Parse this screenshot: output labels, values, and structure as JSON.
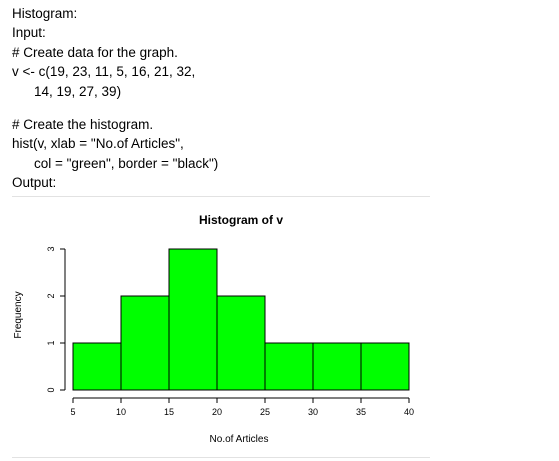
{
  "document": {
    "lines": [
      "Histogram:",
      "Input:",
      "# Create data for the graph.",
      "v <- c(19, 23, 11, 5, 16, 21, 32,",
      "14, 19, 27, 39)",
      "",
      "# Create the histogram.",
      "hist(v, xlab = \"No.of Articles\",",
      "col = \"green\", border = \"black\")",
      "Output:"
    ]
  },
  "chart_data": {
    "type": "bar",
    "title": "Histogram of v",
    "xlabel": "No.of Articles",
    "ylabel": "Frequency",
    "bins": [
      [
        5,
        10
      ],
      [
        10,
        15
      ],
      [
        15,
        20
      ],
      [
        20,
        25
      ],
      [
        25,
        30
      ],
      [
        30,
        35
      ],
      [
        35,
        40
      ]
    ],
    "values": [
      1,
      2,
      3,
      2,
      1,
      1,
      1
    ],
    "xlim": [
      5,
      40
    ],
    "ylim": [
      0,
      3
    ],
    "x_ticks": [
      "5",
      "10",
      "15",
      "20",
      "25",
      "30",
      "35",
      "40"
    ],
    "y_ticks": [
      "0",
      "1",
      "2",
      "3"
    ],
    "bar_color": "#00ff00",
    "border_color": "#000000",
    "grid": false
  }
}
